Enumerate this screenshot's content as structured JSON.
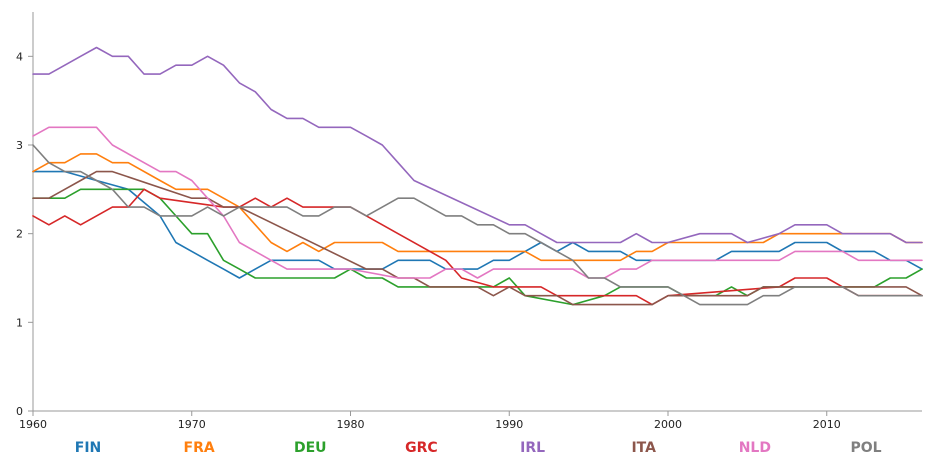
{
  "chart_data": {
    "type": "line",
    "title": "",
    "xlabel": "",
    "ylabel": "",
    "xlim": [
      1960,
      2016
    ],
    "ylim": [
      0,
      4.5
    ],
    "x_ticks": [
      1960,
      1970,
      1980,
      1990,
      2000,
      2010
    ],
    "y_ticks": [
      0,
      1,
      2,
      3,
      4
    ],
    "grid": false,
    "legend_position": "bottom",
    "series": [
      {
        "name": "FIN",
        "color": "#1f77b4",
        "points": [
          [
            1960,
            2.7
          ],
          [
            1962,
            2.7
          ],
          [
            1964,
            2.6
          ],
          [
            1966,
            2.5
          ],
          [
            1968,
            2.2
          ],
          [
            1969,
            1.9
          ],
          [
            1970,
            1.8
          ],
          [
            1971,
            1.7
          ],
          [
            1972,
            1.6
          ],
          [
            1973,
            1.5
          ],
          [
            1974,
            1.6
          ],
          [
            1975,
            1.7
          ],
          [
            1978,
            1.7
          ],
          [
            1979,
            1.6
          ],
          [
            1981,
            1.6
          ],
          [
            1982,
            1.6
          ],
          [
            1983,
            1.7
          ],
          [
            1985,
            1.7
          ],
          [
            1986,
            1.6
          ],
          [
            1988,
            1.6
          ],
          [
            1989,
            1.7
          ],
          [
            1990,
            1.7
          ],
          [
            1991,
            1.8
          ],
          [
            1992,
            1.9
          ],
          [
            1993,
            1.8
          ],
          [
            1994,
            1.9
          ],
          [
            1995,
            1.8
          ],
          [
            1997,
            1.8
          ],
          [
            1998,
            1.7
          ],
          [
            1999,
            1.7
          ],
          [
            2000,
            1.7
          ],
          [
            2003,
            1.7
          ],
          [
            2004,
            1.8
          ],
          [
            2007,
            1.8
          ],
          [
            2008,
            1.9
          ],
          [
            2010,
            1.9
          ],
          [
            2011,
            1.8
          ],
          [
            2013,
            1.8
          ],
          [
            2014,
            1.7
          ],
          [
            2015,
            1.7
          ],
          [
            2016,
            1.6
          ]
        ]
      },
      {
        "name": "FRA",
        "color": "#ff7f0e",
        "points": [
          [
            1960,
            2.7
          ],
          [
            1961,
            2.8
          ],
          [
            1962,
            2.8
          ],
          [
            1963,
            2.9
          ],
          [
            1964,
            2.9
          ],
          [
            1965,
            2.8
          ],
          [
            1966,
            2.8
          ],
          [
            1968,
            2.6
          ],
          [
            1969,
            2.5
          ],
          [
            1971,
            2.5
          ],
          [
            1972,
            2.4
          ],
          [
            1973,
            2.3
          ],
          [
            1974,
            2.1
          ],
          [
            1975,
            1.9
          ],
          [
            1976,
            1.8
          ],
          [
            1977,
            1.9
          ],
          [
            1978,
            1.8
          ],
          [
            1979,
            1.9
          ],
          [
            1982,
            1.9
          ],
          [
            1983,
            1.8
          ],
          [
            1990,
            1.8
          ],
          [
            1991,
            1.8
          ],
          [
            1992,
            1.7
          ],
          [
            1996,
            1.7
          ],
          [
            1997,
            1.7
          ],
          [
            1998,
            1.8
          ],
          [
            1999,
            1.8
          ],
          [
            2000,
            1.9
          ],
          [
            2006,
            1.9
          ],
          [
            2007,
            2.0
          ],
          [
            2013,
            2.0
          ],
          [
            2014,
            2.0
          ],
          [
            2015,
            1.9
          ],
          [
            2016,
            1.9
          ]
        ]
      },
      {
        "name": "DEU",
        "color": "#2ca02c",
        "points": [
          [
            1960,
            2.4
          ],
          [
            1962,
            2.4
          ],
          [
            1963,
            2.5
          ],
          [
            1967,
            2.5
          ],
          [
            1968,
            2.4
          ],
          [
            1969,
            2.2
          ],
          [
            1970,
            2.0
          ],
          [
            1971,
            2.0
          ],
          [
            1972,
            1.7
          ],
          [
            1973,
            1.6
          ],
          [
            1974,
            1.5
          ],
          [
            1979,
            1.5
          ],
          [
            1980,
            1.6
          ],
          [
            1981,
            1.5
          ],
          [
            1982,
            1.5
          ],
          [
            1983,
            1.4
          ],
          [
            1989,
            1.4
          ],
          [
            1990,
            1.5
          ],
          [
            1991,
            1.3
          ],
          [
            1994,
            1.2
          ],
          [
            1996,
            1.3
          ],
          [
            1997,
            1.4
          ],
          [
            2000,
            1.4
          ],
          [
            2001,
            1.3
          ],
          [
            2003,
            1.3
          ],
          [
            2004,
            1.4
          ],
          [
            2005,
            1.3
          ],
          [
            2006,
            1.4
          ],
          [
            2013,
            1.4
          ],
          [
            2014,
            1.5
          ],
          [
            2015,
            1.5
          ],
          [
            2016,
            1.6
          ]
        ]
      },
      {
        "name": "GRC",
        "color": "#d62728",
        "points": [
          [
            1960,
            2.2
          ],
          [
            1961,
            2.1
          ],
          [
            1962,
            2.2
          ],
          [
            1963,
            2.1
          ],
          [
            1964,
            2.2
          ],
          [
            1965,
            2.3
          ],
          [
            1966,
            2.3
          ],
          [
            1967,
            2.5
          ],
          [
            1968,
            2.4
          ],
          [
            1972,
            2.3
          ],
          [
            1973,
            2.3
          ],
          [
            1974,
            2.4
          ],
          [
            1975,
            2.3
          ],
          [
            1976,
            2.4
          ],
          [
            1977,
            2.3
          ],
          [
            1980,
            2.3
          ],
          [
            1981,
            2.2
          ],
          [
            1982,
            2.1
          ],
          [
            1983,
            2.0
          ],
          [
            1986,
            1.7
          ],
          [
            1987,
            1.5
          ],
          [
            1989,
            1.4
          ],
          [
            1990,
            1.4
          ],
          [
            1992,
            1.4
          ],
          [
            1993,
            1.3
          ],
          [
            1998,
            1.3
          ],
          [
            1999,
            1.2
          ],
          [
            2000,
            1.3
          ],
          [
            2007,
            1.4
          ],
          [
            2008,
            1.5
          ],
          [
            2010,
            1.5
          ],
          [
            2011,
            1.4
          ],
          [
            2012,
            1.3
          ],
          [
            2016,
            1.3
          ]
        ]
      },
      {
        "name": "IRL",
        "color": "#9467bd",
        "points": [
          [
            1960,
            3.8
          ],
          [
            1961,
            3.8
          ],
          [
            1962,
            3.9
          ],
          [
            1963,
            4.0
          ],
          [
            1964,
            4.1
          ],
          [
            1965,
            4.0
          ],
          [
            1966,
            4.0
          ],
          [
            1967,
            3.8
          ],
          [
            1968,
            3.8
          ],
          [
            1969,
            3.9
          ],
          [
            1970,
            3.9
          ],
          [
            1971,
            4.0
          ],
          [
            1972,
            3.9
          ],
          [
            1973,
            3.7
          ],
          [
            1974,
            3.6
          ],
          [
            1975,
            3.4
          ],
          [
            1976,
            3.3
          ],
          [
            1977,
            3.3
          ],
          [
            1978,
            3.2
          ],
          [
            1980,
            3.2
          ],
          [
            1981,
            3.1
          ],
          [
            1982,
            3.0
          ],
          [
            1983,
            2.8
          ],
          [
            1984,
            2.6
          ],
          [
            1990,
            2.1
          ],
          [
            1991,
            2.1
          ],
          [
            1992,
            2.0
          ],
          [
            1993,
            1.9
          ],
          [
            1997,
            1.9
          ],
          [
            1998,
            2.0
          ],
          [
            1999,
            1.9
          ],
          [
            2000,
            1.9
          ],
          [
            2002,
            2.0
          ],
          [
            2004,
            2.0
          ],
          [
            2005,
            1.9
          ],
          [
            2007,
            2.0
          ],
          [
            2008,
            2.1
          ],
          [
            2010,
            2.1
          ],
          [
            2011,
            2.0
          ],
          [
            2014,
            2.0
          ],
          [
            2015,
            1.9
          ],
          [
            2016,
            1.9
          ]
        ]
      },
      {
        "name": "ITA",
        "color": "#8c564b",
        "points": [
          [
            1960,
            2.4
          ],
          [
            1961,
            2.4
          ],
          [
            1962,
            2.5
          ],
          [
            1963,
            2.6
          ],
          [
            1964,
            2.7
          ],
          [
            1965,
            2.7
          ],
          [
            1970,
            2.4
          ],
          [
            1971,
            2.4
          ],
          [
            1972,
            2.3
          ],
          [
            1973,
            2.3
          ],
          [
            1981,
            1.6
          ],
          [
            1982,
            1.6
          ],
          [
            1983,
            1.5
          ],
          [
            1984,
            1.5
          ],
          [
            1985,
            1.4
          ],
          [
            1988,
            1.4
          ],
          [
            1989,
            1.3
          ],
          [
            1990,
            1.4
          ],
          [
            1991,
            1.3
          ],
          [
            1993,
            1.3
          ],
          [
            1994,
            1.2
          ],
          [
            1995,
            1.2
          ],
          [
            1996,
            1.2
          ],
          [
            1998,
            1.2
          ],
          [
            1999,
            1.2
          ],
          [
            2000,
            1.3
          ],
          [
            2005,
            1.3
          ],
          [
            2006,
            1.4
          ],
          [
            2008,
            1.4
          ],
          [
            2010,
            1.4
          ],
          [
            2011,
            1.4
          ],
          [
            2013,
            1.4
          ],
          [
            2014,
            1.4
          ],
          [
            2015,
            1.4
          ],
          [
            2016,
            1.3
          ]
        ]
      },
      {
        "name": "NLD",
        "color": "#e377c2",
        "points": [
          [
            1960,
            3.1
          ],
          [
            1961,
            3.2
          ],
          [
            1964,
            3.2
          ],
          [
            1965,
            3.0
          ],
          [
            1968,
            2.7
          ],
          [
            1969,
            2.7
          ],
          [
            1970,
            2.6
          ],
          [
            1971,
            2.4
          ],
          [
            1972,
            2.2
          ],
          [
            1973,
            1.9
          ],
          [
            1974,
            1.8
          ],
          [
            1975,
            1.7
          ],
          [
            1976,
            1.6
          ],
          [
            1979,
            1.6
          ],
          [
            1980,
            1.6
          ],
          [
            1983,
            1.5
          ],
          [
            1985,
            1.5
          ],
          [
            1986,
            1.6
          ],
          [
            1987,
            1.6
          ],
          [
            1988,
            1.5
          ],
          [
            1989,
            1.6
          ],
          [
            1994,
            1.6
          ],
          [
            1995,
            1.5
          ],
          [
            1996,
            1.5
          ],
          [
            1997,
            1.6
          ],
          [
            1998,
            1.6
          ],
          [
            1999,
            1.7
          ],
          [
            2000,
            1.7
          ],
          [
            2007,
            1.7
          ],
          [
            2008,
            1.8
          ],
          [
            2010,
            1.8
          ],
          [
            2011,
            1.8
          ],
          [
            2012,
            1.7
          ],
          [
            2016,
            1.7
          ]
        ]
      },
      {
        "name": "POL",
        "color": "#7f7f7f",
        "points": [
          [
            1960,
            3.0
          ],
          [
            1961,
            2.8
          ],
          [
            1962,
            2.7
          ],
          [
            1963,
            2.7
          ],
          [
            1964,
            2.6
          ],
          [
            1965,
            2.5
          ],
          [
            1966,
            2.3
          ],
          [
            1967,
            2.3
          ],
          [
            1968,
            2.2
          ],
          [
            1970,
            2.2
          ],
          [
            1971,
            2.3
          ],
          [
            1972,
            2.2
          ],
          [
            1973,
            2.3
          ],
          [
            1976,
            2.3
          ],
          [
            1977,
            2.2
          ],
          [
            1978,
            2.2
          ],
          [
            1979,
            2.3
          ],
          [
            1980,
            2.3
          ],
          [
            1981,
            2.2
          ],
          [
            1982,
            2.3
          ],
          [
            1983,
            2.4
          ],
          [
            1984,
            2.4
          ],
          [
            1985,
            2.3
          ],
          [
            1986,
            2.2
          ],
          [
            1987,
            2.2
          ],
          [
            1988,
            2.1
          ],
          [
            1989,
            2.1
          ],
          [
            1990,
            2.0
          ],
          [
            1991,
            2.0
          ],
          [
            1992,
            1.9
          ],
          [
            1993,
            1.8
          ],
          [
            1994,
            1.7
          ],
          [
            1995,
            1.5
          ],
          [
            1996,
            1.5
          ],
          [
            1997,
            1.4
          ],
          [
            1999,
            1.4
          ],
          [
            2000,
            1.4
          ],
          [
            2001,
            1.3
          ],
          [
            2002,
            1.2
          ],
          [
            2005,
            1.2
          ],
          [
            2006,
            1.3
          ],
          [
            2007,
            1.3
          ],
          [
            2008,
            1.4
          ],
          [
            2010,
            1.4
          ],
          [
            2011,
            1.4
          ],
          [
            2012,
            1.3
          ],
          [
            2016,
            1.3
          ]
        ]
      }
    ]
  }
}
